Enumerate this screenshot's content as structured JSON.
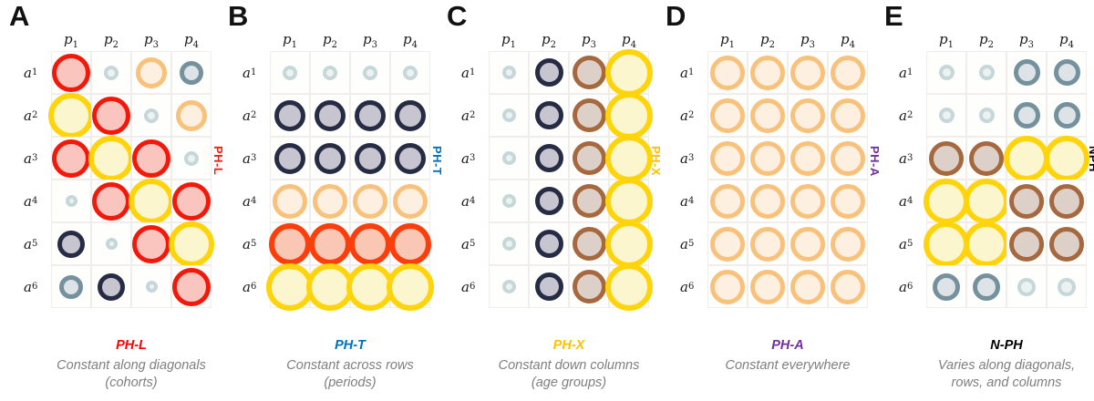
{
  "figure": {
    "background": "#ffffff",
    "grid_line_color": "#f0edea"
  },
  "grid": {
    "col_base": "p",
    "row_base": "a",
    "col_subs": [
      "1",
      "2",
      "3",
      "4"
    ],
    "row_subs": [
      "1",
      "2",
      "3",
      "4",
      "5",
      "6"
    ]
  },
  "circle_styles": {
    "red": {
      "ring": "#f2190b",
      "fill": "#f9c5be",
      "bw": 5
    },
    "redorange": {
      "ring": "#fb3e0b",
      "fill": "#fac7b4",
      "bw": 6
    },
    "yellow": {
      "ring": "#ffd40a",
      "fill": "#fcf6ce",
      "bw": 6
    },
    "orange": {
      "ring": "#f8c17c",
      "fill": "#fdf0e0",
      "bw": 5
    },
    "navy": {
      "ring": "#272c45",
      "fill": "#c7c5cf",
      "bw": 5
    },
    "slate": {
      "ring": "#74919d",
      "fill": "#dde3e6",
      "bw": 5
    },
    "teal": {
      "ring": "#c6d7da",
      "fill": "#ecf1f1",
      "bw": 4
    },
    "brown": {
      "ring": "#a5683f",
      "fill": "#ddd0c8",
      "bw": 5
    }
  },
  "panels": [
    {
      "letter": "A",
      "side_label": "PH-L",
      "side_color": "#ff1a0a",
      "caption": {
        "title": "PH-L",
        "color": "#ff0000",
        "lines": [
          "Constant along diagonals",
          "(cohorts)"
        ]
      },
      "cells": [
        [
          "red:42",
          "teal:16",
          "orange:34",
          "slate:26"
        ],
        [
          "yellow:50",
          "red:42",
          "teal:16",
          "orange:34"
        ],
        [
          "red:42",
          "yellow:50",
          "red:42",
          "teal:16"
        ],
        [
          "teal:13",
          "red:42",
          "yellow:50",
          "red:42"
        ],
        [
          "navy:30",
          "teal:13",
          "red:42",
          "yellow:50"
        ],
        [
          "slate:26",
          "navy:30",
          "teal:13",
          "red:42"
        ]
      ]
    },
    {
      "letter": "B",
      "side_label": "PH-T",
      "side_color": "#0070c0",
      "caption": {
        "title": "PH-T",
        "color": "#0070c0",
        "lines": [
          "Constant across rows",
          "(periods)"
        ]
      },
      "cells": [
        [
          "teal:16",
          "teal:16",
          "teal:16",
          "teal:16"
        ],
        [
          "navy:34",
          "navy:34",
          "navy:34",
          "navy:34"
        ],
        [
          "navy:34",
          "navy:34",
          "navy:34",
          "navy:34"
        ],
        [
          "orange:38",
          "orange:38",
          "orange:38",
          "orange:38"
        ],
        [
          "redorange:46",
          "redorange:46",
          "redorange:46",
          "redorange:46"
        ],
        [
          "yellow:52",
          "yellow:52",
          "yellow:52",
          "yellow:52"
        ]
      ]
    },
    {
      "letter": "C",
      "side_label": "PH-X",
      "side_color": "#ffc000",
      "caption": {
        "title": "PH-X",
        "color": "#ffc000",
        "lines": [
          "Constant down columns",
          "(age groups)"
        ]
      },
      "cells": [
        [
          "teal:15",
          "navy:31",
          "brown:37",
          "yellow:52"
        ],
        [
          "teal:15",
          "navy:31",
          "brown:37",
          "yellow:52"
        ],
        [
          "teal:15",
          "navy:31",
          "brown:37",
          "yellow:52"
        ],
        [
          "teal:15",
          "navy:31",
          "brown:37",
          "yellow:52"
        ],
        [
          "teal:15",
          "navy:31",
          "brown:37",
          "yellow:52"
        ],
        [
          "teal:15",
          "navy:31",
          "brown:37",
          "yellow:52"
        ]
      ]
    },
    {
      "letter": "D",
      "side_label": "PH-A",
      "side_color": "#7030a0",
      "caption": {
        "title": "PH-A",
        "color": "#7030a0",
        "lines": [
          "Constant everywhere"
        ]
      },
      "cells": [
        [
          "orange:38",
          "orange:38",
          "orange:38",
          "orange:38"
        ],
        [
          "orange:38",
          "orange:38",
          "orange:38",
          "orange:38"
        ],
        [
          "orange:38",
          "orange:38",
          "orange:38",
          "orange:38"
        ],
        [
          "orange:38",
          "orange:38",
          "orange:38",
          "orange:38"
        ],
        [
          "orange:38",
          "orange:38",
          "orange:38",
          "orange:38"
        ],
        [
          "orange:38",
          "orange:38",
          "orange:38",
          "orange:38"
        ]
      ]
    },
    {
      "letter": "E",
      "side_label": "NPH",
      "side_color": "#000000",
      "caption": {
        "title": "N-PH",
        "color": "#000000",
        "lines": [
          "Varies along diagonals,",
          "rows, and columns"
        ]
      },
      "cells": [
        [
          "teal:17",
          "teal:17",
          "slate:29",
          "slate:29"
        ],
        [
          "teal:17",
          "teal:17",
          "slate:29",
          "slate:29"
        ],
        [
          "brown:38",
          "brown:38",
          "yellow:50",
          "yellow:50"
        ],
        [
          "yellow:50",
          "yellow:50",
          "brown:38",
          "brown:38"
        ],
        [
          "yellow:50",
          "yellow:50",
          "brown:38",
          "brown:38"
        ],
        [
          "slate:30",
          "slate:30",
          "teal:20",
          "teal:20"
        ]
      ]
    }
  ]
}
